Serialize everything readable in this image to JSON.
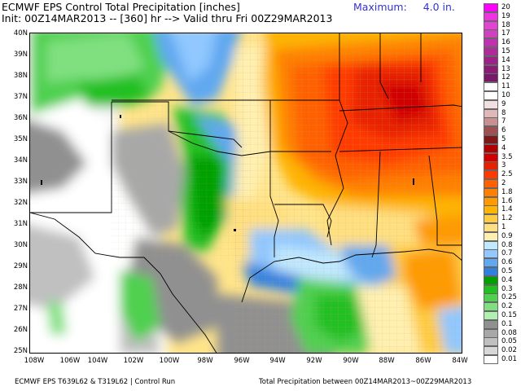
{
  "header": {
    "title": "ECMWF EPS Control Total Precipitation [inches]",
    "init_line": "Init: 00Z14MAR2013 -- [360] hr --> Valid thru Fri 00Z29MAR2013",
    "maximum_label": "Maximum:",
    "maximum_value": "4.0 in."
  },
  "footer": {
    "left": "ECMWF EPS T639L62 & T319L62 | Control Run",
    "right": "Total Precipitation between 00Z14MAR2013~00Z29MAR2013"
  },
  "map": {
    "lat_labels": [
      "40N",
      "39N",
      "38N",
      "37N",
      "36N",
      "35N",
      "34N",
      "33N",
      "32N",
      "31N",
      "30N",
      "29N",
      "28N",
      "27N",
      "26N",
      "25N"
    ],
    "lon_labels": [
      "108W",
      "106W",
      "104W",
      "102W",
      "100W",
      "98W",
      "96W",
      "94W",
      "92W",
      "90W",
      "88W",
      "86W",
      "84W"
    ],
    "lat_range": [
      25,
      40
    ],
    "lon_range": [
      -108,
      -84
    ]
  },
  "legend": {
    "levels": [
      {
        "label": "20",
        "color": "#ff00ff"
      },
      {
        "label": "19",
        "color": "#f033e0"
      },
      {
        "label": "18",
        "color": "#e044d0"
      },
      {
        "label": "17",
        "color": "#d040c0"
      },
      {
        "label": "16",
        "color": "#c030b0"
      },
      {
        "label": "15",
        "color": "#b02a9c"
      },
      {
        "label": "14",
        "color": "#9c2288"
      },
      {
        "label": "13",
        "color": "#8a1c78"
      },
      {
        "label": "12",
        "color": "#781868"
      },
      {
        "label": "11",
        "color": "#ffffff"
      },
      {
        "label": "10",
        "color": "#ffffff"
      },
      {
        "label": "9",
        "color": "#f0e0e0"
      },
      {
        "label": "8",
        "color": "#e0b8b8"
      },
      {
        "label": "7",
        "color": "#c89090"
      },
      {
        "label": "6",
        "color": "#a05050"
      },
      {
        "label": "5",
        "color": "#801818"
      },
      {
        "label": "4",
        "color": "#b00000"
      },
      {
        "label": "3.5",
        "color": "#d00000"
      },
      {
        "label": "3",
        "color": "#e82000"
      },
      {
        "label": "2.5",
        "color": "#ff3a00"
      },
      {
        "label": "2",
        "color": "#ff6000"
      },
      {
        "label": "1.8",
        "color": "#ff8000"
      },
      {
        "label": "1.6",
        "color": "#ff9a00"
      },
      {
        "label": "1.4",
        "color": "#ffb400"
      },
      {
        "label": "1.2",
        "color": "#ffcc40"
      },
      {
        "label": "1",
        "color": "#ffe080"
      },
      {
        "label": "0.9",
        "color": "#fff0b0"
      },
      {
        "label": "0.8",
        "color": "#c0e8ff"
      },
      {
        "label": "0.7",
        "color": "#90c8ff"
      },
      {
        "label": "0.6",
        "color": "#60a8f0"
      },
      {
        "label": "0.5",
        "color": "#3080e0"
      },
      {
        "label": "0.4",
        "color": "#00a000"
      },
      {
        "label": "0.3",
        "color": "#20c020"
      },
      {
        "label": "0.25",
        "color": "#50d050"
      },
      {
        "label": "0.2",
        "color": "#80e080"
      },
      {
        "label": "0.15",
        "color": "#b0f0b0"
      },
      {
        "label": "0.1",
        "color": "#909090"
      },
      {
        "label": "0.08",
        "color": "#a8a8a8"
      },
      {
        "label": "0.05",
        "color": "#c0c0c0"
      },
      {
        "label": "0.02",
        "color": "#d8d8d8"
      },
      {
        "label": "0.01",
        "color": "#ffffff"
      }
    ]
  },
  "colors": {
    "max_text": "#3333cc",
    "border_lines": "#000000",
    "county_lines": "#c8b090"
  }
}
